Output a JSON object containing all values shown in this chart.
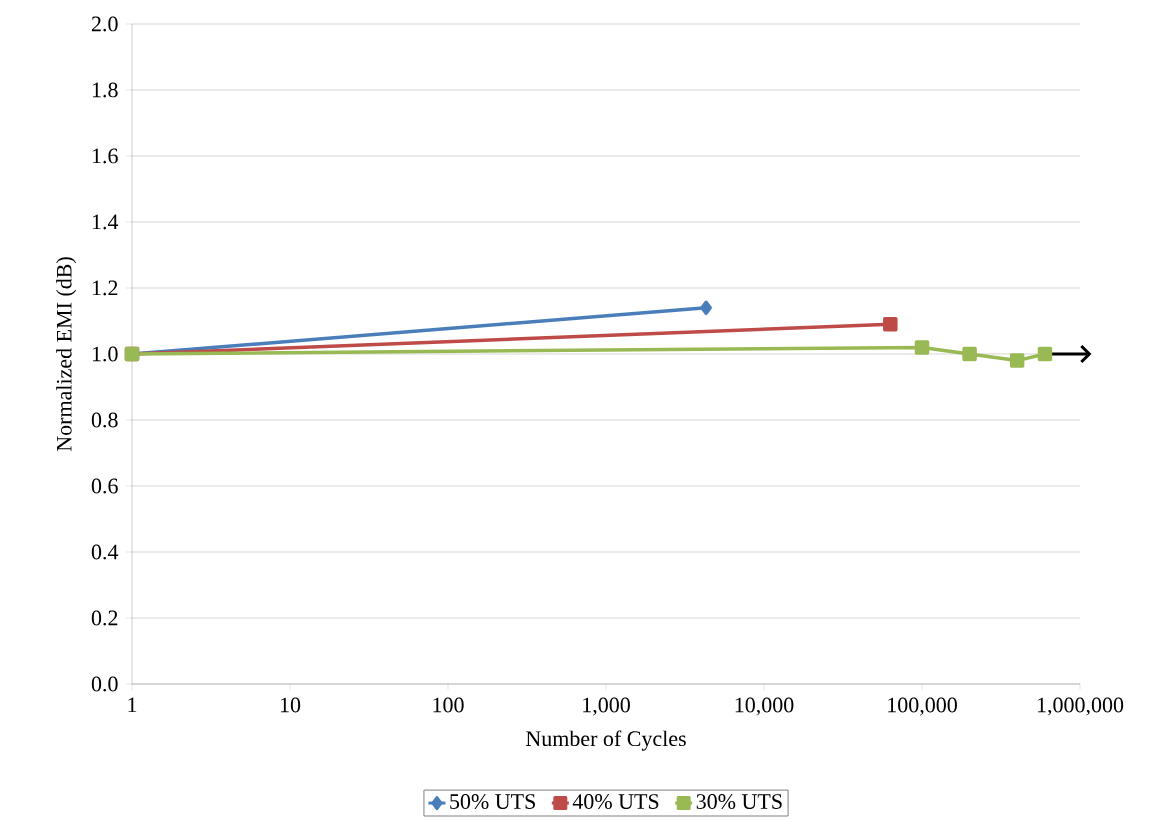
{
  "chart_data": {
    "type": "line",
    "xlabel": "Number of Cycles",
    "ylabel": "Normalized EMI (dB)",
    "series": [
      {
        "name": "50% UTS",
        "color": "#4a7ebb",
        "marker": "diamond",
        "x": [
          1,
          4300
        ],
        "values": [
          1.0,
          1.14
        ]
      },
      {
        "name": "40% UTS",
        "color": "#be4b48",
        "marker": "square",
        "x": [
          1,
          63000
        ],
        "values": [
          1.0,
          1.09
        ]
      },
      {
        "name": "30% UTS",
        "color": "#98b954",
        "marker": "square",
        "x": [
          1,
          100000,
          200000,
          400000,
          600000
        ],
        "values": [
          1.0,
          1.02,
          1.0,
          0.98,
          1.0
        ]
      }
    ],
    "log": "x",
    "xlim": [
      1,
      1000000
    ],
    "ylim": [
      0,
      2.0
    ],
    "xticks": [
      {
        "value": 1,
        "label": "1"
      },
      {
        "value": 10,
        "label": "10"
      },
      {
        "value": 100,
        "label": "100"
      },
      {
        "value": 1000,
        "label": "1,000"
      },
      {
        "value": 10000,
        "label": "10,000"
      },
      {
        "value": 100000,
        "label": "100,000"
      },
      {
        "value": 1000000,
        "label": "1,000,000"
      }
    ],
    "yticks": [
      {
        "value": 0,
        "label": "0.0"
      },
      {
        "value": 0.2,
        "label": "0.2"
      },
      {
        "value": 0.4,
        "label": "0.4"
      },
      {
        "value": 0.6,
        "label": "0.6"
      },
      {
        "value": 0.8,
        "label": "0.8"
      },
      {
        "value": 1.0,
        "label": "1.0"
      },
      {
        "value": 1.2,
        "label": "1.2"
      },
      {
        "value": 1.4,
        "label": "1.4"
      },
      {
        "value": 1.6,
        "label": "1.6"
      },
      {
        "value": 1.8,
        "label": "1.8"
      },
      {
        "value": 2.0,
        "label": "2.0"
      }
    ],
    "grid": "y",
    "legend": "bottom",
    "line_style": "solid"
  }
}
